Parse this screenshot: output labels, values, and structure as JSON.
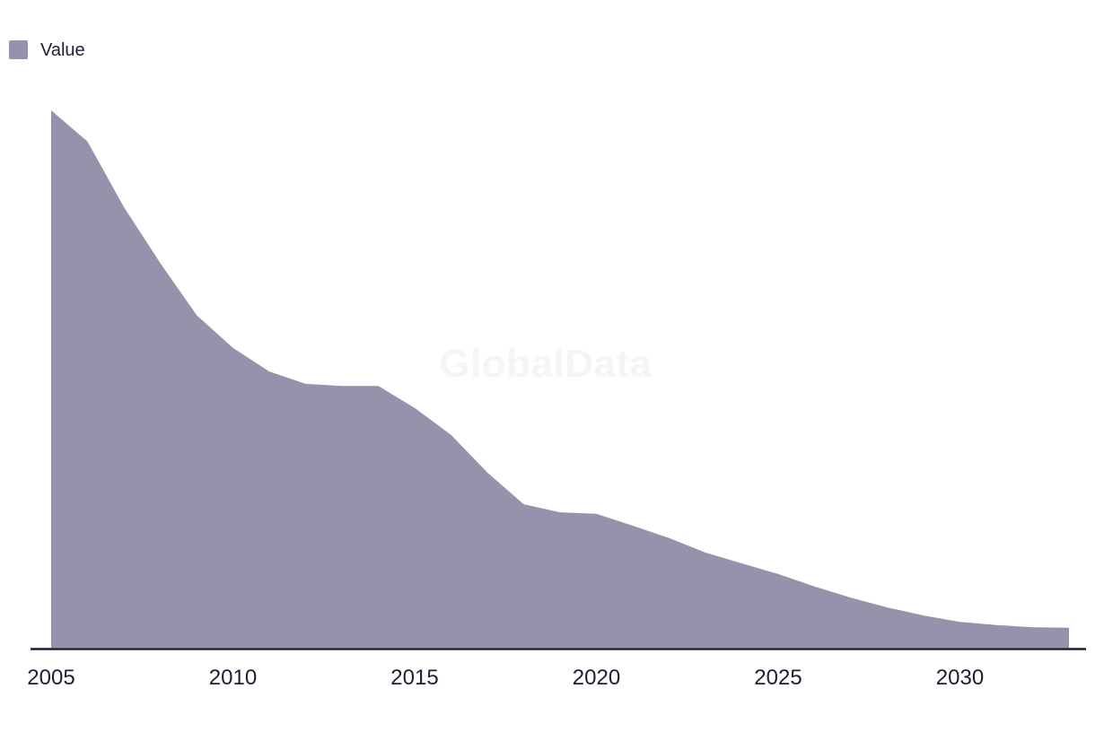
{
  "legend": {
    "label": "Value"
  },
  "watermark": {
    "text": "GlobalData"
  },
  "colors": {
    "background": "#FFFFFF",
    "area_fill": "#9891AB",
    "axis_line": "#1B1B2F",
    "text": "#1E1E35",
    "watermark": "#F5F4F6"
  },
  "chart_data": {
    "type": "area",
    "title": "",
    "xlabel": "",
    "ylabel": "",
    "grid": false,
    "legend_position": "top-left",
    "x": [
      2005,
      2006,
      2007,
      2008,
      2009,
      2010,
      2011,
      2012,
      2013,
      2014,
      2015,
      2016,
      2017,
      2018,
      2019,
      2020,
      2021,
      2022,
      2023,
      2024,
      2025,
      2026,
      2027,
      2028,
      2029,
      2030,
      2031,
      2032,
      2033
    ],
    "series": [
      {
        "name": "Value",
        "color": "#9891AB",
        "values": [
          100,
          94.2,
          82.0,
          71.6,
          61.9,
          55.8,
          51.4,
          49.1,
          48.7,
          48.7,
          44.6,
          39.6,
          32.6,
          26.7,
          25.2,
          24.9,
          22.7,
          20.4,
          17.7,
          15.7,
          13.7,
          11.4,
          9.3,
          7.5,
          6.0,
          4.8,
          4.2,
          3.8,
          3.7
        ]
      }
    ],
    "tick_labels": [
      "2005",
      "2010",
      "2015",
      "2020",
      "2025",
      "2030"
    ],
    "value_scale": "relative index (no y-axis shown); 2005 peak normalized to 100",
    "xlim": [
      2005,
      2033
    ],
    "ylim": [
      0,
      105
    ]
  }
}
